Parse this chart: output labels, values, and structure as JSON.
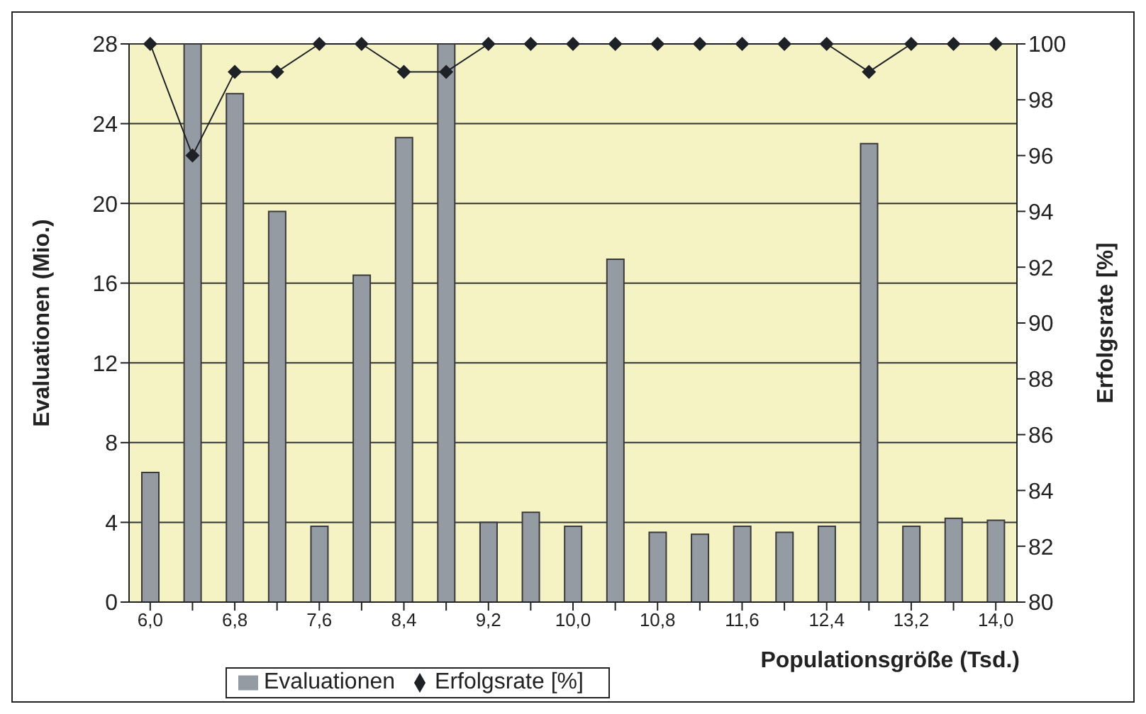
{
  "chart_data": {
    "type": "bar",
    "xlabel": "Populationsgröße (Tsd.)",
    "ylabel": "Evaluationen (Mio.)",
    "y2label": "Erfolgsrate [%]",
    "categories": [
      "6,0",
      null,
      "6,8",
      null,
      "7,6",
      null,
      "8,4",
      null,
      "9,2",
      null,
      "10,0",
      null,
      "10,8",
      null,
      "11,6",
      null,
      "12,4",
      null,
      "13,2",
      null,
      "14,0"
    ],
    "series": [
      {
        "name": "Evaluationen",
        "color": "#959ba3",
        "values": [
          6.5,
          28,
          25.5,
          19.6,
          3.8,
          16.4,
          23.3,
          28,
          4.0,
          4.5,
          3.8,
          17.2,
          3.5,
          3.4,
          3.8,
          3.5,
          3.8,
          23.0,
          3.8,
          4.2,
          4.1
        ]
      },
      {
        "name": "Erfolgsrate [%]",
        "type": "line",
        "axis": "y2",
        "color": "#1e2226",
        "marker": "diamond",
        "values": [
          100,
          96,
          99,
          99,
          100,
          100,
          99,
          99,
          100,
          100,
          100,
          100,
          100,
          100,
          100,
          100,
          100,
          99,
          100,
          100,
          100
        ]
      }
    ],
    "ylim": [
      0,
      28
    ],
    "yticks": [
      0,
      4,
      8,
      12,
      16,
      20,
      24,
      28
    ],
    "y2lim": [
      80,
      100
    ],
    "y2ticks": [
      80,
      82,
      84,
      86,
      88,
      90,
      92,
      94,
      96,
      98,
      100
    ],
    "grid": "y",
    "legend": "bottom"
  }
}
